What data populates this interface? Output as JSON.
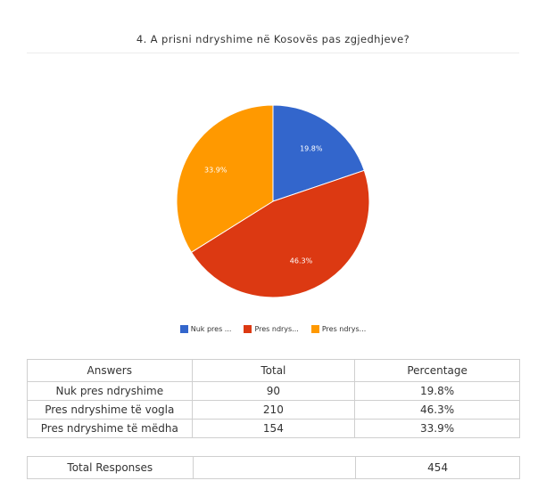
{
  "title": "4. A prisni ndryshime në Kosovës pas zgjedhjeve?",
  "chart_data": {
    "type": "pie",
    "title": "4. A prisni ndryshime në Kosovës pas zgjedhjeve?",
    "slices": [
      {
        "label": "Nuk pres ndryshime",
        "legend_label": "Nuk pres ...",
        "value": 19.8,
        "display": "19.8%",
        "color": "#3366cc"
      },
      {
        "label": "Pres ndryshime të vogla",
        "legend_label": "Pres ndrys...",
        "value": 46.3,
        "display": "46.3%",
        "color": "#dc3912"
      },
      {
        "label": "Pres ndryshime të mëdha",
        "legend_label": "Pres ndrys...",
        "value": 33.9,
        "display": "33.9%",
        "color": "#ff9900"
      }
    ],
    "legend_position": "bottom"
  },
  "table": {
    "headers": [
      "Answers",
      "Total",
      "Percentage"
    ],
    "rows": [
      {
        "answer": "Nuk pres ndryshime",
        "total": "90",
        "percentage": "19.8%"
      },
      {
        "answer": "Pres ndryshime të vogla",
        "total": "210",
        "percentage": "46.3%"
      },
      {
        "answer": "Pres ndryshime të mëdha",
        "total": "154",
        "percentage": "33.9%"
      }
    ],
    "total_label": "Total Responses",
    "total_value": "454"
  }
}
